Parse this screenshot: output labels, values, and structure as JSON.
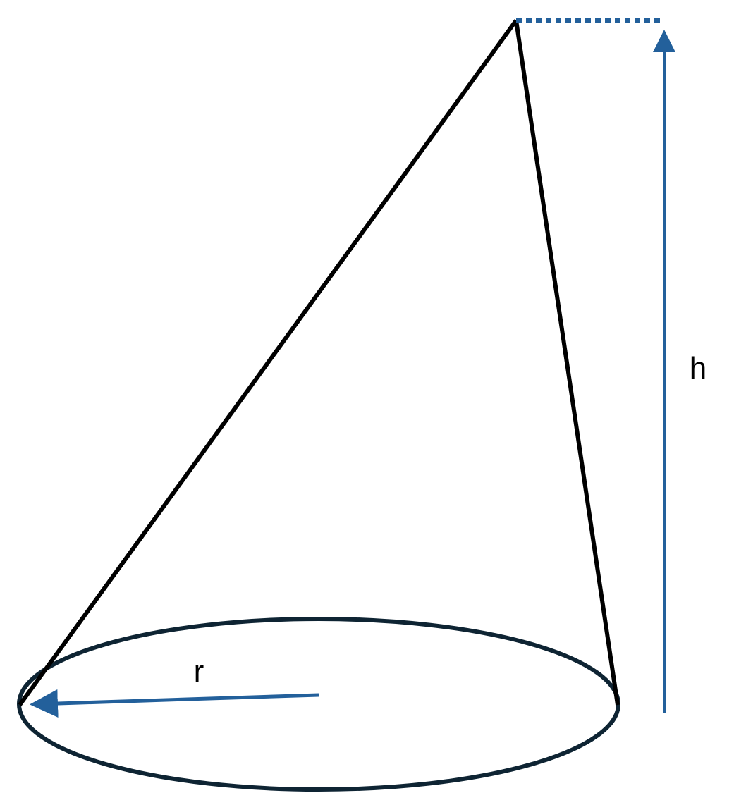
{
  "labels": {
    "height": "h",
    "radius": "r"
  }
}
